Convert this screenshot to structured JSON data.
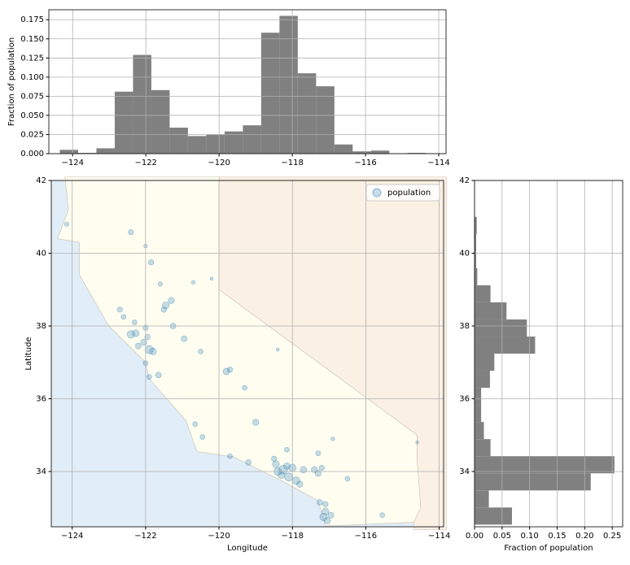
{
  "chart_data": [
    {
      "type": "histogram",
      "ylabel": "Fraction of population",
      "bins": [
        -124.35,
        -123.85,
        -123.35,
        -122.85,
        -122.35,
        -121.85,
        -121.35,
        -120.85,
        -120.35,
        -119.85,
        -119.35,
        -118.85,
        -118.35,
        -117.85,
        -117.35,
        -116.85,
        -116.35,
        -115.85,
        -115.35,
        -114.85,
        -114.35
      ],
      "values": [
        0.005,
        0.001,
        0.007,
        0.081,
        0.129,
        0.083,
        0.034,
        0.023,
        0.025,
        0.029,
        0.037,
        0.158,
        0.18,
        0.105,
        0.088,
        0.012,
        0.003,
        0.004,
        0.0,
        0.001
      ],
      "color": "#808080",
      "xlim": [
        -124.65,
        -113.8
      ],
      "xticks": [
        {
          "value": -124,
          "label": "−124"
        },
        {
          "value": -122,
          "label": "−122"
        },
        {
          "value": -120,
          "label": "−120"
        },
        {
          "value": -118,
          "label": "−118"
        },
        {
          "value": -116,
          "label": "−116"
        },
        {
          "value": -114,
          "label": "−114"
        }
      ],
      "ylim": [
        0,
        0.188
      ],
      "yticks": [
        {
          "value": 0,
          "label": "0.000"
        },
        {
          "value": 0.025,
          "label": "0.025"
        },
        {
          "value": 0.05,
          "label": "0.050"
        },
        {
          "value": 0.075,
          "label": "0.075"
        },
        {
          "value": 0.1,
          "label": "0.100"
        },
        {
          "value": 0.125,
          "label": "0.125"
        },
        {
          "value": 0.15,
          "label": "0.150"
        },
        {
          "value": 0.175,
          "label": "0.175"
        }
      ],
      "grid": true
    },
    {
      "type": "scatter",
      "xlabel": "Longitude",
      "ylabel": "Latitude",
      "series": [
        {
          "name": "population",
          "color": "#1f77b4",
          "x": [
            -122.4,
            -122.27,
            -121.9,
            -122.05,
            -122.2,
            -121.95,
            -122.6,
            -122.7,
            -122.3,
            -121.8,
            -122.0,
            -121.45,
            -121.3,
            -121.5,
            -121.25,
            -120.95,
            -119.8,
            -119.7,
            -119.0,
            -119.3,
            -118.25,
            -118.4,
            -118.1,
            -118.0,
            -117.9,
            -118.3,
            -118.45,
            -117.7,
            -117.4,
            -117.3,
            -118.15,
            -117.8,
            -118.5,
            -117.2,
            -116.5,
            -119.2,
            -119.7,
            -117.15,
            -117.05,
            -117.1,
            -117.25,
            -116.95,
            -117.1,
            -122.4,
            -121.85,
            -124.15,
            -122.0,
            -120.7,
            -121.6,
            -121.65,
            -121.9,
            -120.65,
            -120.45,
            -122.0,
            -115.55,
            -116.9,
            -117.3,
            -118.15,
            -114.6,
            -118.4,
            -120.5,
            -120.2
          ],
          "y": [
            37.77,
            37.8,
            37.35,
            37.55,
            37.45,
            37.7,
            38.25,
            38.45,
            38.1,
            37.3,
            37.95,
            38.57,
            38.7,
            38.45,
            38.0,
            37.65,
            36.75,
            36.8,
            35.35,
            36.3,
            34.05,
            34.0,
            33.85,
            34.1,
            33.75,
            33.9,
            34.2,
            34.05,
            34.05,
            33.95,
            34.15,
            33.65,
            34.35,
            34.1,
            33.8,
            34.25,
            34.42,
            32.75,
            32.65,
            32.9,
            33.15,
            32.8,
            33.1,
            40.58,
            39.75,
            40.8,
            40.2,
            39.2,
            39.15,
            36.65,
            36.6,
            35.3,
            34.95,
            36.98,
            32.8,
            34.9,
            34.5,
            34.6,
            34.8,
            37.35,
            37.3,
            39.3
          ],
          "sizes": [
            60,
            50,
            70,
            40,
            35,
            30,
            25,
            30,
            25,
            50,
            30,
            50,
            40,
            30,
            35,
            35,
            45,
            30,
            40,
            25,
            80,
            60,
            70,
            60,
            60,
            50,
            50,
            45,
            40,
            40,
            45,
            40,
            30,
            30,
            25,
            35,
            25,
            60,
            45,
            50,
            35,
            35,
            30,
            30,
            30,
            20,
            15,
            15,
            20,
            35,
            25,
            25,
            25,
            25,
            25,
            15,
            25,
            25,
            10,
            10,
            25,
            10
          ]
        }
      ],
      "xlim": [
        -124.57,
        -113.88
      ],
      "xticks": [
        {
          "value": -124,
          "label": "−124"
        },
        {
          "value": -122,
          "label": "−122"
        },
        {
          "value": -120,
          "label": "−120"
        },
        {
          "value": -118,
          "label": "−118"
        },
        {
          "value": -116,
          "label": "−116"
        },
        {
          "value": -114,
          "label": "−114"
        }
      ],
      "ylim": [
        32.48,
        42.0
      ],
      "yticks": [
        34,
        36,
        38,
        40,
        42
      ],
      "grid": true,
      "legend": "upper right"
    },
    {
      "type": "histogram",
      "orientation": "horizontal",
      "xlabel": "Fraction of population",
      "bins": [
        32.54,
        33.01,
        33.48,
        33.95,
        34.42,
        34.89,
        35.36,
        35.83,
        36.3,
        36.77,
        37.24,
        37.71,
        38.18,
        38.65,
        39.12,
        39.59,
        40.06,
        40.53,
        41.0
      ],
      "values": [
        0.068,
        0.026,
        0.211,
        0.254,
        0.029,
        0.017,
        0.012,
        0.012,
        0.028,
        0.036,
        0.11,
        0.095,
        0.058,
        0.029,
        0.005,
        0.003,
        0.003,
        0.004
      ],
      "color": "#808080",
      "xlim": [
        0,
        0.269
      ],
      "xticks": [
        {
          "value": 0,
          "label": "0.00"
        },
        {
          "value": 0.05,
          "label": "0.05"
        },
        {
          "value": 0.1,
          "label": "0.10"
        },
        {
          "value": 0.15,
          "label": "0.15"
        },
        {
          "value": 0.2,
          "label": "0.20"
        },
        {
          "value": 0.25,
          "label": "0.25"
        }
      ],
      "ylim": [
        32.48,
        42.0
      ],
      "yticks": [
        34,
        36,
        38,
        40,
        42
      ],
      "grid": true
    }
  ]
}
